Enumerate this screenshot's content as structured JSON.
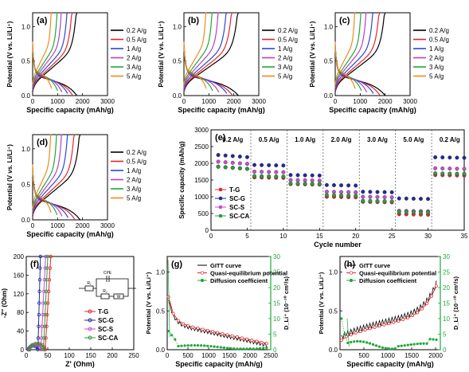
{
  "colors": {
    "c02": "#000000",
    "c05": "#e4262a",
    "c1": "#2b46d6",
    "c2": "#b73fc8",
    "c3": "#1ea83a",
    "c5": "#f08a1c",
    "tg": "#e4262a",
    "scg": "#1f2a9b",
    "scs": "#c94ad1",
    "scca": "#2a9e3b"
  },
  "chart_data": [
    {
      "panel": "(a)",
      "type": "line",
      "xlabel": "Specific capacity (mAh/g)",
      "ylabel": "Potential (V vs. Li/Li⁺)",
      "xlim": [
        0,
        3000
      ],
      "ylim": [
        0,
        1.2
      ],
      "xticks": [
        0,
        1000,
        2000,
        3000
      ],
      "yticks": [
        0.0,
        0.5,
        1.0
      ],
      "legend": "right",
      "series": [
        {
          "name": "0.2 A/g",
          "color": "c02",
          "cap": 1770,
          "pl": 0.12
        },
        {
          "name": "0.5 A/g",
          "color": "c05",
          "cap": 1590,
          "pl": 0.13
        },
        {
          "name": "1 A/g",
          "color": "c1",
          "cap": 1400,
          "pl": 0.15
        },
        {
          "name": "2 A/g",
          "color": "c2",
          "cap": 1170,
          "pl": 0.17
        },
        {
          "name": "3 A/g",
          "color": "c3",
          "cap": 1000,
          "pl": 0.19
        },
        {
          "name": "5 A/g",
          "color": "c5",
          "cap": 760,
          "pl": 0.22
        }
      ]
    },
    {
      "panel": "(b)",
      "type": "line",
      "xlabel": "Specific capacity (mAh/g)",
      "ylabel": "Potential (V vs. Li/Li⁺)",
      "xlim": [
        0,
        3000
      ],
      "ylim": [
        0,
        1.2
      ],
      "xticks": [
        0,
        1000,
        2000,
        3000
      ],
      "yticks": [
        0.0,
        0.5,
        1.0
      ],
      "legend": "right",
      "series": [
        {
          "name": "0.2 A/g",
          "color": "c02",
          "cap": 2180,
          "pl": 0.12
        },
        {
          "name": "0.5 A/g",
          "color": "c05",
          "cap": 1930,
          "pl": 0.13
        },
        {
          "name": "1 A/g",
          "color": "c1",
          "cap": 1720,
          "pl": 0.15
        },
        {
          "name": "2 A/g",
          "color": "c2",
          "cap": 1400,
          "pl": 0.17
        },
        {
          "name": "3 A/g",
          "color": "c3",
          "cap": 1150,
          "pl": 0.19
        },
        {
          "name": "5 A/g",
          "color": "c5",
          "cap": 900,
          "pl": 0.22
        }
      ]
    },
    {
      "panel": "(c)",
      "type": "line",
      "xlabel": "Specific capacity (mAh/g)",
      "ylabel": "Potential (V vs. Li/Li⁺)",
      "xlim": [
        0,
        3000
      ],
      "ylim": [
        0,
        1.2
      ],
      "xticks": [
        0,
        1000,
        2000,
        3000
      ],
      "yticks": [
        0.0,
        0.5,
        1.0
      ],
      "legend": "right",
      "series": [
        {
          "name": "0.2 A/g",
          "color": "c02",
          "cap": 2000,
          "pl": 0.12
        },
        {
          "name": "0.5 A/g",
          "color": "c05",
          "cap": 1780,
          "pl": 0.13
        },
        {
          "name": "1 A/g",
          "color": "c1",
          "cap": 1530,
          "pl": 0.15
        },
        {
          "name": "2 A/g",
          "color": "c2",
          "cap": 1260,
          "pl": 0.17
        },
        {
          "name": "3 A/g",
          "color": "c3",
          "cap": 1050,
          "pl": 0.19
        },
        {
          "name": "5 A/g",
          "color": "c5",
          "cap": 800,
          "pl": 0.22
        }
      ]
    },
    {
      "panel": "(d)",
      "type": "line",
      "xlabel": "Specific capacity (mAh/g)",
      "ylabel": "Potential (V vs. Li/Li⁺)",
      "xlim": [
        0,
        3000
      ],
      "ylim": [
        0,
        1.2
      ],
      "xticks": [
        0,
        1000,
        2000,
        3000
      ],
      "yticks": [
        0.0,
        0.5,
        1.0
      ],
      "legend": "right",
      "series": [
        {
          "name": "0.2 A/g",
          "color": "c02",
          "cap": 1900,
          "pl": 0.12
        },
        {
          "name": "0.5 A/g",
          "color": "c05",
          "cap": 1680,
          "pl": 0.13
        },
        {
          "name": "1 A/g",
          "color": "c1",
          "cap": 1420,
          "pl": 0.15
        },
        {
          "name": "2 A/g",
          "color": "c2",
          "cap": 1180,
          "pl": 0.17
        },
        {
          "name": "3 A/g",
          "color": "c3",
          "cap": 980,
          "pl": 0.19
        },
        {
          "name": "5 A/g",
          "color": "c5",
          "cap": 740,
          "pl": 0.22
        }
      ]
    },
    {
      "panel": "(e)",
      "type": "scatter",
      "xlabel": "Cycle number",
      "ylabel": "Specific capacity (mAh/g)",
      "xlim": [
        0,
        35
      ],
      "ylim": [
        0,
        3000
      ],
      "xticks": [
        0,
        5,
        10,
        15,
        20,
        25,
        30,
        35
      ],
      "yticks": [
        0,
        500,
        1000,
        1500,
        2000,
        2500,
        3000
      ],
      "legend": "left",
      "rate_labels": [
        "0.2 A/g",
        "0.5 A/g",
        "1.0 A/g",
        "2.0 A/g",
        "3.0 A/g",
        "5.0 A/g",
        "0.2 A/g"
      ],
      "segments": [
        [
          1,
          5
        ],
        [
          6,
          10
        ],
        [
          11,
          15
        ],
        [
          16,
          20
        ],
        [
          21,
          25
        ],
        [
          26,
          30
        ],
        [
          31,
          35
        ]
      ],
      "series": [
        {
          "name": "T-G",
          "color": "tg",
          "levels": [
            1850,
            1580,
            1380,
            1000,
            850,
            480,
            1650
          ]
        },
        {
          "name": "SC-G",
          "color": "scg",
          "levels": [
            2200,
            1950,
            1650,
            1350,
            1150,
            950,
            2180
          ]
        },
        {
          "name": "SC-S",
          "color": "scs",
          "levels": [
            2000,
            1750,
            1500,
            1150,
            1000,
            580,
            1850
          ]
        },
        {
          "name": "SC-CA",
          "color": "scca",
          "levels": [
            1850,
            1620,
            1400,
            1050,
            880,
            550,
            1700
          ]
        }
      ]
    },
    {
      "panel": "(f)",
      "type": "scatter",
      "xlabel": "Z' (Ohm)",
      "ylabel": "-Z\" (Ohm)",
      "xlim": [
        0,
        250
      ],
      "ylim": [
        0,
        200
      ],
      "xticks": [
        0,
        50,
        100,
        150,
        200,
        250
      ],
      "yticks": [
        0,
        40,
        80,
        120,
        160,
        200
      ],
      "legend": "bottom-right",
      "circuit_labels": [
        "CPE",
        "R₁",
        "R₂",
        "W"
      ],
      "series": [
        {
          "name": "T-G",
          "color": "tg",
          "r0": 8,
          "d": 36,
          "z0": 57
        },
        {
          "name": "SC-G",
          "color": "scg",
          "r0": 5,
          "d": 22,
          "z0": 33
        },
        {
          "name": "SC-S",
          "color": "scs",
          "r0": 6,
          "d": 28,
          "z0": 45
        },
        {
          "name": "SC-CA",
          "color": "scca",
          "r0": 7,
          "d": 33,
          "z0": 50
        }
      ]
    },
    {
      "panel": "(g)",
      "type": "line",
      "xlabel": "Specific capacity (mAh/g)",
      "ylabel": "Potential (V vs. Li/Li⁺)",
      "y2label": "D_Li⁺ (10⁻¹⁰ cm²/s)",
      "xlim": [
        0,
        2500
      ],
      "ylim": [
        0,
        1.2
      ],
      "y2lim": [
        0,
        30
      ],
      "xticks": [
        0,
        500,
        1000,
        1500,
        2000,
        2500
      ],
      "yticks": [
        0.0,
        0.5,
        1.0
      ],
      "y2ticks": [
        0,
        5,
        10,
        15,
        20,
        25,
        30
      ],
      "legend": "top-right",
      "series": [
        {
          "name": "GITT curve",
          "color": "c02"
        },
        {
          "name": "Quasi-equilibrium potential",
          "color": "c05"
        },
        {
          "name": "Diffusion coefficient",
          "color": "c3"
        }
      ]
    },
    {
      "panel": "(h)",
      "type": "line",
      "xlabel": "Specific capacity (mAh/g)",
      "ylabel": "Potential (V vs. Li/Li⁺)",
      "y2label": "D_Li⁺ (10⁻¹⁰ cm²/s)",
      "xlim": [
        0,
        2100
      ],
      "ylim": [
        0,
        1.2
      ],
      "y2lim": [
        0,
        30
      ],
      "xticks": [
        0,
        500,
        1000,
        1500,
        2000
      ],
      "yticks": [
        0.0,
        0.5,
        1.0
      ],
      "y2ticks": [
        0,
        5,
        10,
        15,
        20,
        25,
        30
      ],
      "legend": "top-left",
      "series": [
        {
          "name": "GITT curve",
          "color": "c02"
        },
        {
          "name": "Quasi-equilibrium potential",
          "color": "c05"
        },
        {
          "name": "Diffusion coefficient",
          "color": "c3"
        }
      ]
    }
  ]
}
